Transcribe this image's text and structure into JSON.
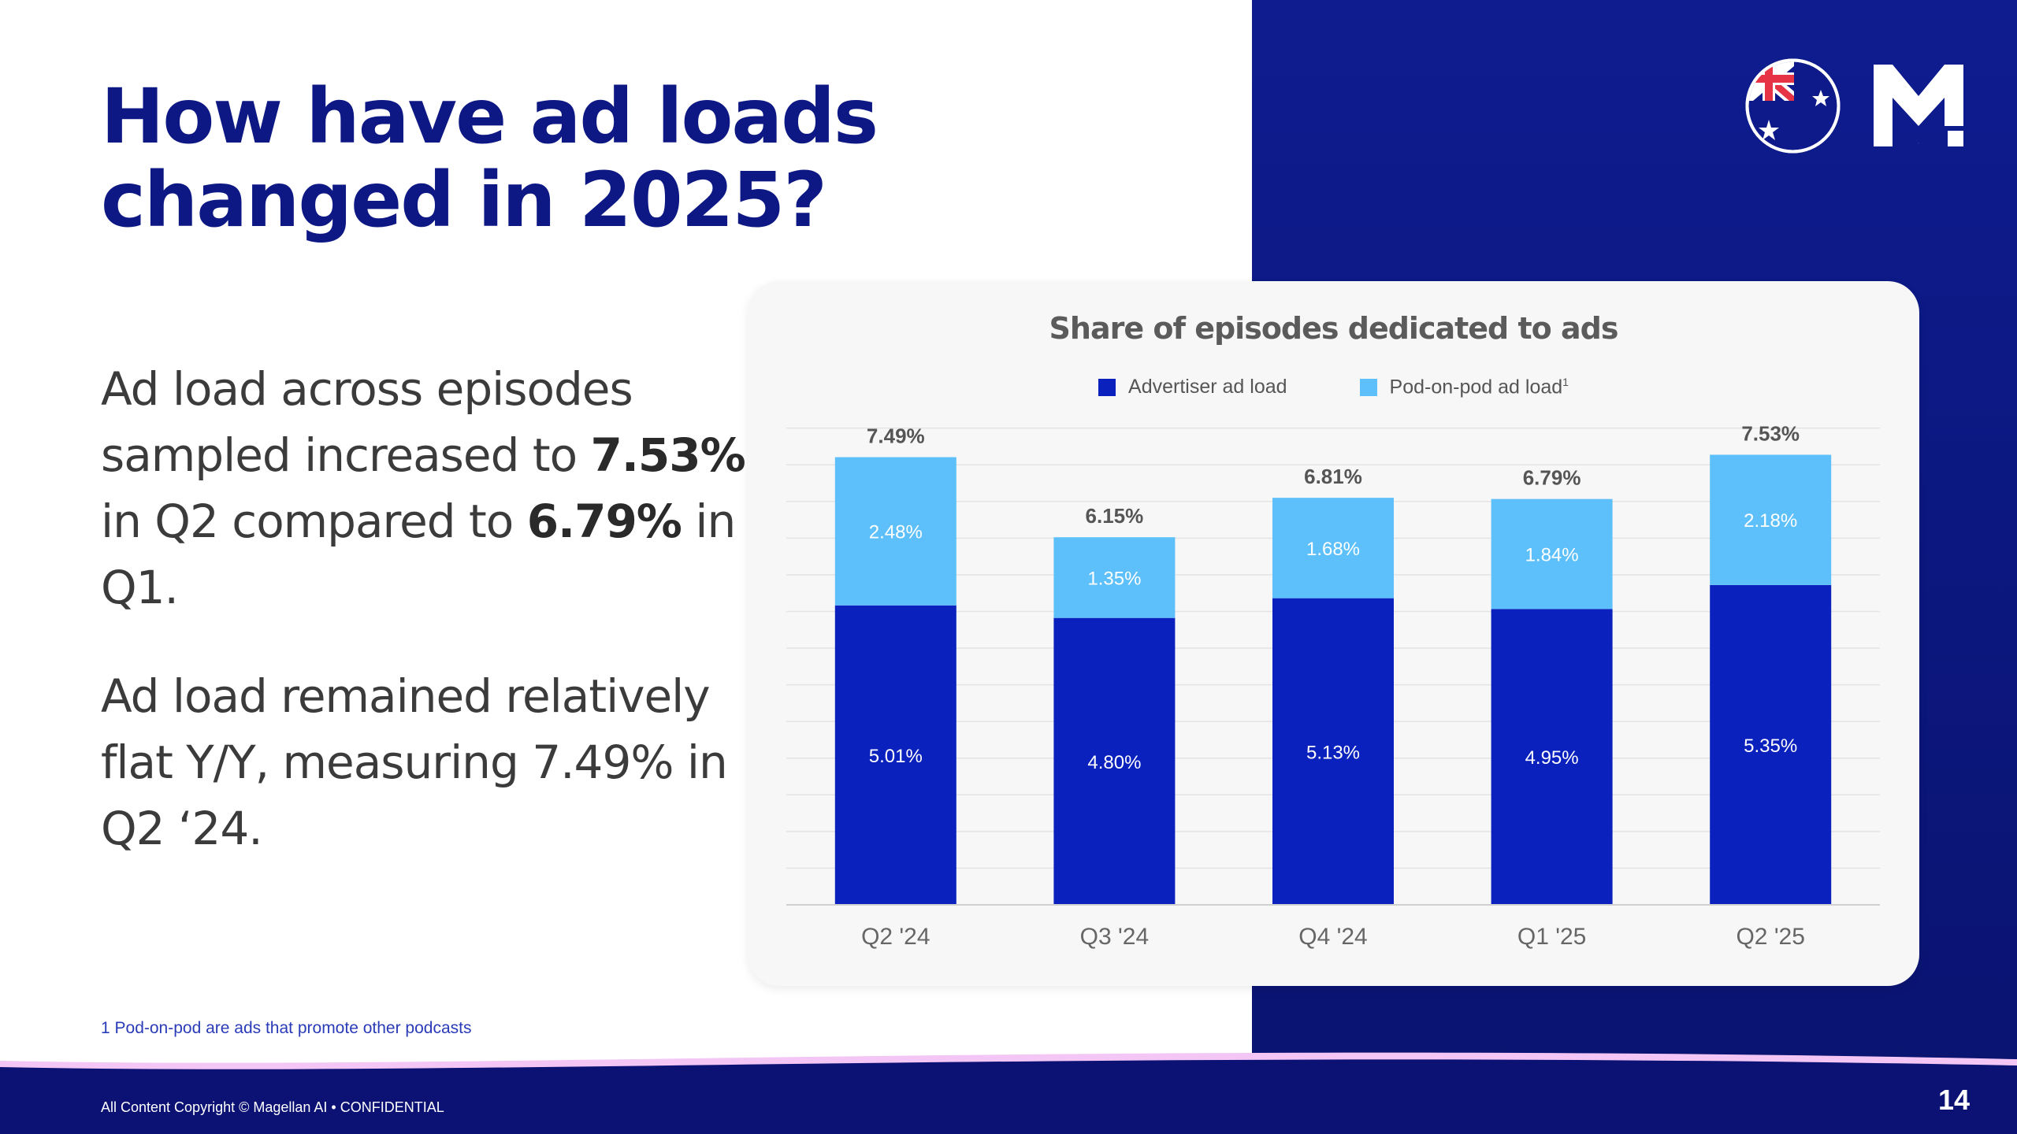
{
  "slide": {
    "title": "How have ad loads changed in 2025?",
    "paragraph1": {
      "t1": "Ad load across episodes sampled increased to ",
      "b1": "7.53%",
      "t2": " in Q2 compared to ",
      "b2": "6.79%",
      "t3": " in Q1."
    },
    "paragraph2": "Ad load remained relatively flat Y/Y, measuring 7.49% in Q2 ‘24.",
    "footnote": "1 Pod-on-pod are ads that promote other podcasts",
    "copyright": "All Content Copyright © Magellan AI • CONFIDENTIAL",
    "page_number": "14",
    "logo_letter": "M",
    "flag_icon": "australia-flag-icon",
    "colors": {
      "navy": "#0e1884",
      "advertiser": "#0a21bd",
      "pod_on_pod": "#5ec0fb"
    }
  },
  "chart_data": {
    "type": "bar",
    "stacked": true,
    "title": "Share of episodes dedicated to ads",
    "categories": [
      "Q2 '24",
      "Q3 '24",
      "Q4 '24",
      "Q1 '25",
      "Q2 '25"
    ],
    "series": [
      {
        "name": "Advertiser ad load",
        "values": [
          5.01,
          4.8,
          5.13,
          4.95,
          5.35
        ],
        "labels": [
          "5.01%",
          "4.80%",
          "5.13%",
          "4.95%",
          "5.35%"
        ],
        "color": "#0a21bd"
      },
      {
        "name": "Pod-on-pod ad load",
        "legend_sup": "1",
        "values": [
          2.48,
          1.35,
          1.68,
          1.84,
          2.18
        ],
        "labels": [
          "2.48%",
          "1.35%",
          "1.68%",
          "1.84%",
          "2.18%"
        ],
        "color": "#5ec0fb"
      }
    ],
    "totals": [
      7.49,
      6.15,
      6.81,
      6.79,
      7.53
    ],
    "total_labels": [
      "7.49%",
      "6.15%",
      "6.81%",
      "6.79%",
      "7.53%"
    ],
    "ylim": [
      0,
      8
    ],
    "grid": true,
    "legend_position": "top-center"
  }
}
